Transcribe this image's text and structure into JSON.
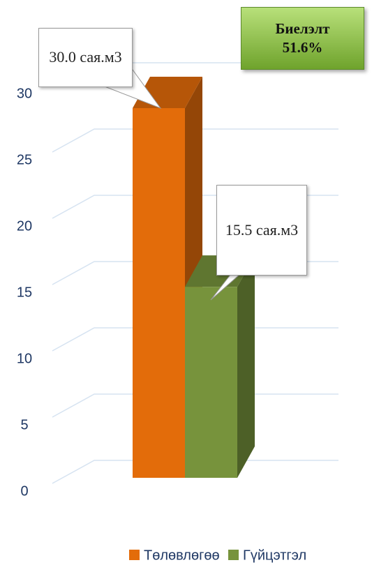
{
  "chart_data": {
    "type": "bar",
    "categories": [
      null
    ],
    "series": [
      {
        "name": "Төлөвлөгөө",
        "color": "#e36c0a",
        "values": [
          30.0
        ],
        "value_labels": [
          "30.0 сая.м3"
        ]
      },
      {
        "name": "Гүйцэтгэл",
        "color": "#77933c",
        "values": [
          15.5
        ],
        "value_labels": [
          "15.5 сая.м3"
        ]
      }
    ],
    "ylim": [
      0,
      30
    ],
    "yticks": [
      0,
      5,
      10,
      15,
      20,
      25,
      30
    ],
    "grid": true,
    "legend": "bottom",
    "annotation": "Биелэлт 51.6%"
  }
}
